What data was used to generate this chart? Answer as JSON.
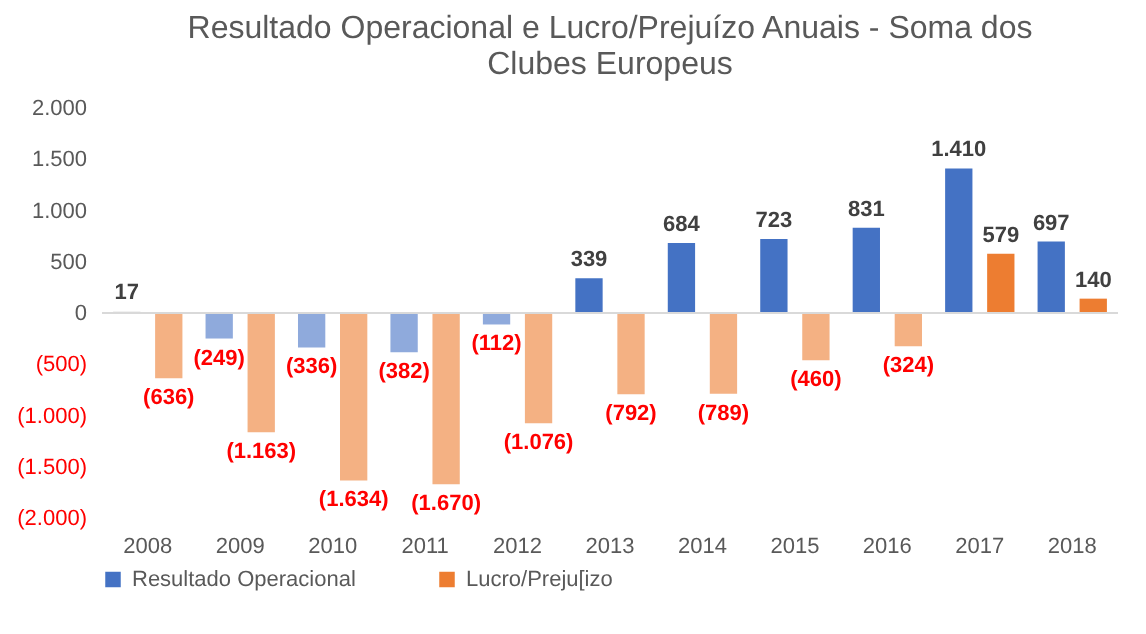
{
  "chart_data": {
    "type": "bar",
    "title": "Resultado Operacional e Lucro/Prejuízo Anuais - Soma dos Clubes Europeus",
    "categories": [
      "2008",
      "2009",
      "2010",
      "2011",
      "2012",
      "2013",
      "2014",
      "2015",
      "2016",
      "2017",
      "2018"
    ],
    "series": [
      {
        "name": "Resultado Operacional",
        "color": "#4472c4",
        "colors": [
          "#ececec",
          "#8faadc",
          "#8faadc",
          "#8faadc",
          "#8faadc",
          "#4472c4",
          "#4472c4",
          "#4472c4",
          "#4472c4",
          "#4472c4",
          "#4472c4"
        ],
        "values": [
          17,
          -249,
          -336,
          -382,
          -112,
          339,
          684,
          723,
          831,
          1410,
          697
        ],
        "value_labels": [
          "17",
          "(249)",
          "(336)",
          "(382)",
          "(112)",
          "339",
          "684",
          "723",
          "831",
          "1.410",
          "697"
        ]
      },
      {
        "name": "Lucro/Preju[izo",
        "color": "#ed7d31",
        "colors": [
          "#f4b183",
          "#f4b183",
          "#f4b183",
          "#f4b183",
          "#f4b183",
          "#f4b183",
          "#f4b183",
          "#f4b183",
          "#f4b183",
          "#ed7d31",
          "#ed7d31"
        ],
        "values": [
          -636,
          -1163,
          -1634,
          -1670,
          -1076,
          -792,
          -789,
          -460,
          -324,
          579,
          140
        ],
        "value_labels": [
          "(636)",
          "(1.163)",
          "(1.634)",
          "(1.670)",
          "(1.076)",
          "(792)",
          "(789)",
          "(460)",
          "(324)",
          "579",
          "140"
        ]
      }
    ],
    "ylim": [
      -2000,
      2000
    ],
    "yticks": [
      {
        "value": -2000,
        "label": "(2.000)"
      },
      {
        "value": -1500,
        "label": "(1.500)"
      },
      {
        "value": -1000,
        "label": "(1.000)"
      },
      {
        "value": -500,
        "label": "(500)"
      },
      {
        "value": 0,
        "label": "0"
      },
      {
        "value": 500,
        "label": "500"
      },
      {
        "value": 1000,
        "label": "1.000"
      },
      {
        "value": 1500,
        "label": "1.500"
      },
      {
        "value": 2000,
        "label": "2.000"
      }
    ],
    "ref_lines": [
      {
        "axis": "y",
        "value": 0,
        "color": "#d9d9d9"
      }
    ],
    "legend": "bottom",
    "grid": false
  }
}
